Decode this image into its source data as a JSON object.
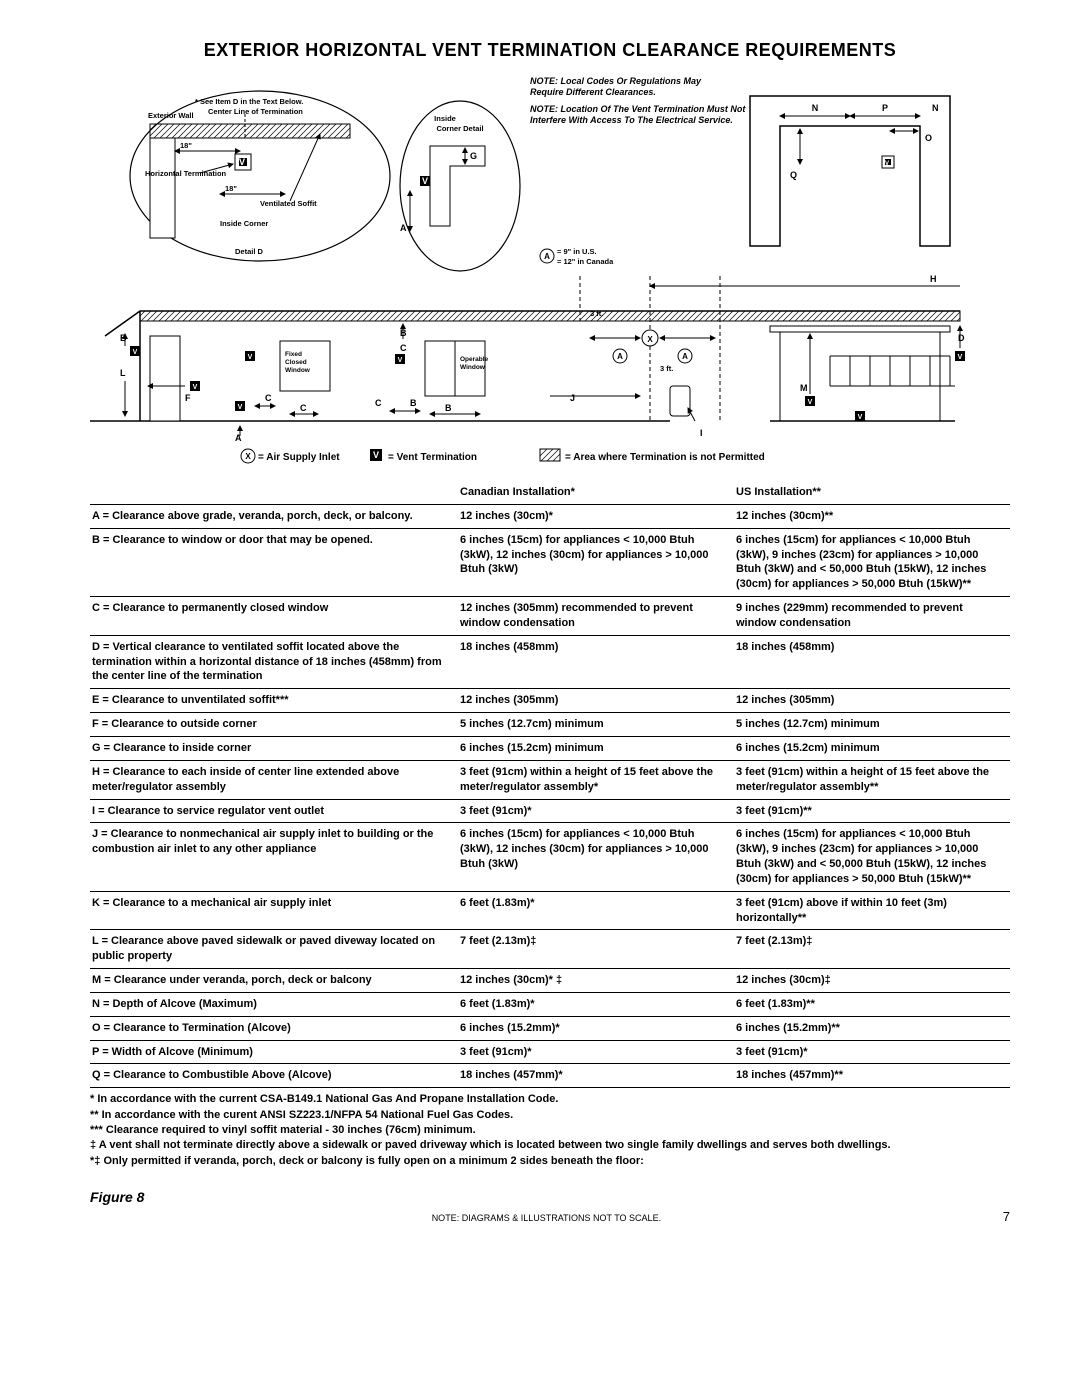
{
  "title": "EXTERIOR HORIZONTAL VENT TERMINATION CLEARANCE REQUIREMENTS",
  "notes": {
    "n1": "NOTE: Local Codes Or Regulations May Require Different Clearances.",
    "n2": "NOTE: Location Of The Vent Termination Must Not Interfere With Access To The Electrical Service."
  },
  "detail": {
    "see_item": "* See Item D in the Text Below.",
    "ext_wall": "Exterior Wall",
    "center_line": "Center Line of Termination",
    "horiz_term": "Horizontal Termination",
    "vent_soffit": "Ventilated Soffit",
    "inside_corner": "Inside Corner",
    "detail_d": "Detail D",
    "eighteen1": "18\"",
    "eighteen2": "18\""
  },
  "inside_corner": {
    "title1": "Inside",
    "title2": "Corner Detail",
    "G": "G",
    "A": "A",
    "V": "V"
  },
  "a_note": {
    "a": "A",
    "l1": "= 9\" in U.S.",
    "l2": "= 12\" in Canada"
  },
  "main_labels": {
    "H": "H",
    "three_ft1": "3 ft.",
    "three_ft2": "3 ft.",
    "B": "B",
    "C": "C",
    "L": "L",
    "F": "F",
    "A": "A",
    "V": "V",
    "X": "X",
    "J": "J",
    "I": "I",
    "M": "M",
    "D": "D",
    "fixed": "Fixed Closed Window",
    "operable": "Operable Window",
    "N": "N",
    "P": "P",
    "O": "O",
    "Q": "Q"
  },
  "legend": {
    "x": "= Air Supply Inlet",
    "v": "= Vent Termination",
    "box": "= Area where Termination is not Permitted"
  },
  "table": {
    "headers": {
      "can": "Canadian Installation*",
      "us": "US Installation**"
    },
    "rows": [
      {
        "d": "A = Clearance above grade, veranda, porch, deck, or balcony.",
        "c": "12 inches (30cm)*",
        "u": "12 inches (30cm)**"
      },
      {
        "d": "B = Clearance to window or door that may be opened.",
        "c": "6 inches (15cm) for appliances < 10,000 Btuh (3kW), 12 inches (30cm) for appliances > 10,000 Btuh (3kW)",
        "u": "6 inches (15cm) for appliances < 10,000 Btuh (3kW), 9 inches (23cm) for appliances > 10,000 Btuh (3kW) and < 50,000 Btuh (15kW), 12 inches (30cm) for appliances > 50,000 Btuh (15kW)**"
      },
      {
        "d": "C = Clearance to permanently closed window",
        "c": "12 inches (305mm) recommended to prevent window condensation",
        "u": "9 inches (229mm) recommended to prevent window condensation"
      },
      {
        "d": "D = Vertical clearance to ventilated soffit located above the termination within a horizontal distance of 18 inches (458mm) from the center line of the termination",
        "c": "18 inches (458mm)",
        "u": "18 inches (458mm)"
      },
      {
        "d": "E = Clearance to unventilated soffit***",
        "c": "12 inches (305mm)",
        "u": "12 inches (305mm)"
      },
      {
        "d": "F = Clearance to outside corner",
        "c": "5 inches (12.7cm) minimum",
        "u": "5 inches (12.7cm) minimum"
      },
      {
        "d": "G = Clearance to inside corner",
        "c": "6 inches (15.2cm) minimum",
        "u": "6 inches (15.2cm) minimum"
      },
      {
        "d": "H = Clearance to each inside of center line extended above meter/regulator assembly",
        "c": "3 feet (91cm) within a height of 15 feet above the meter/regulator assembly*",
        "u": "3 feet (91cm) within a height of 15 feet above the meter/regulator assembly**"
      },
      {
        "d": "I = Clearance to service regulator vent outlet",
        "c": "3 feet (91cm)*",
        "u": "3 feet (91cm)**"
      },
      {
        "d": "J = Clearance to nonmechanical air supply inlet to building or the combustion air inlet to any other appliance",
        "c": "6 inches (15cm) for appliances < 10,000 Btuh (3kW), 12 inches (30cm) for appliances > 10,000 Btuh (3kW)",
        "u": "6 inches (15cm) for appliances < 10,000 Btuh (3kW), 9 inches (23cm) for appliances > 10,000 Btuh (3kW) and < 50,000 Btuh (15kW), 12 inches (30cm) for appliances > 50,000 Btuh (15kW)**"
      },
      {
        "d": "K = Clearance to a mechanical air supply inlet",
        "c": "6 feet (1.83m)*",
        "u": "3 feet (91cm) above if within 10 feet (3m) horizontally**"
      },
      {
        "d": "L = Clearance above paved sidewalk or paved diveway located on public property",
        "c": "7 feet (2.13m)‡",
        "u": "7 feet (2.13m)‡"
      },
      {
        "d": "M = Clearance under veranda, porch, deck or balcony",
        "c": "12 inches (30cm)* ‡",
        "u": "12 inches (30cm)‡"
      },
      {
        "d": "N = Depth of Alcove (Maximum)",
        "c": "6 feet (1.83m)*",
        "u": "6 feet (1.83m)**"
      },
      {
        "d": "O = Clearance to Termination (Alcove)",
        "c": "6 inches (15.2mm)*",
        "u": "6 inches (15.2mm)**"
      },
      {
        "d": "P = Width of Alcove (Minimum)",
        "c": "3 feet (91cm)*",
        "u": "3 feet (91cm)*"
      },
      {
        "d": "Q = Clearance to Combustible Above (Alcove)",
        "c": "18 inches (457mm)*",
        "u": "18 inches (457mm)**"
      }
    ]
  },
  "footnotes": [
    "* In accordance with the current CSA-B149.1 National Gas And Propane Installation Code.",
    "** In accordance with the curent ANSI SZ223.1/NFPA 54 National Fuel Gas Codes.",
    "*** Clearance required to vinyl soffit material - 30 inches (76cm) minimum.",
    "‡ A vent shall not terminate directly above a sidewalk or paved driveway which is located between two single family dwellings and serves both dwellings.",
    "*‡ Only permitted if veranda, porch, deck or balcony is fully open on a minimum 2 sides beneath the floor:"
  ],
  "figure": "Figure 8",
  "bottom_note": "NOTE: DIAGRAMS & ILLUSTRATIONS NOT TO SCALE.",
  "page": "7"
}
